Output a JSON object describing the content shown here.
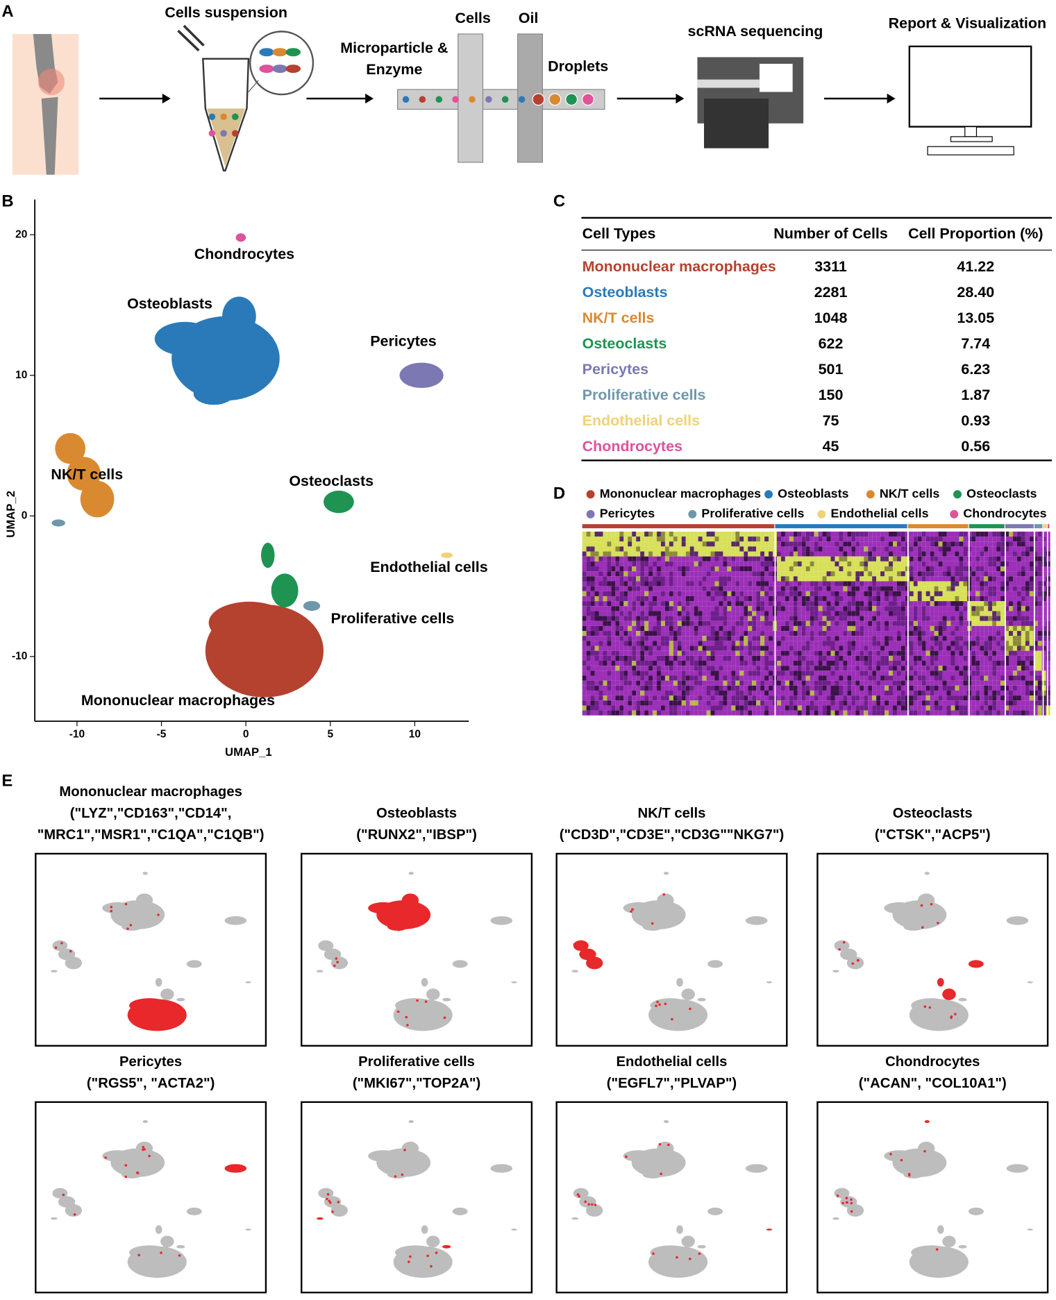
{
  "panel_labels": [
    "A",
    "B",
    "C",
    "D",
    "E"
  ],
  "workflow": {
    "cells_suspension": "Cells suspension",
    "microparticle": [
      "Microparticle &",
      "Enzyme"
    ],
    "cells": "Cells",
    "oil": "Oil",
    "droplets": "Droplets",
    "sequencing": "scRNA sequencing",
    "report": "Report & Visualization"
  },
  "umap": {
    "xlabel": "UMAP_1",
    "ylabel": "UMAP_2",
    "xlim": [
      -12.5,
      13.2
    ],
    "ylim": [
      -14.6,
      22.5
    ],
    "xticks": [
      -10,
      -5,
      0,
      5,
      10
    ],
    "yticks": [
      -10,
      0,
      10,
      20
    ]
  },
  "table": {
    "headers": [
      "Cell Types",
      "Number of Cells",
      "Cell Proportion (%)"
    ],
    "rows": [
      {
        "name": "Mononuclear macrophages",
        "color": "#b5412f",
        "count": 3311,
        "proportion": "41.22"
      },
      {
        "name": "Osteoblasts",
        "color": "#2a7ab9",
        "count": 2281,
        "proportion": "28.40"
      },
      {
        "name": "NK/T cells",
        "color": "#d98a30",
        "count": 1048,
        "proportion": "13.05"
      },
      {
        "name": "Osteoclasts",
        "color": "#1f9352",
        "count": 622,
        "proportion": "7.74"
      },
      {
        "name": "Pericytes",
        "color": "#7b78b3",
        "count": 501,
        "proportion": "6.23"
      },
      {
        "name": "Proliferative cells",
        "color": "#6f97aa",
        "count": 150,
        "proportion": "1.87"
      },
      {
        "name": "Endothelial cells",
        "color": "#f0d27a",
        "count": 75,
        "proportion": "0.93"
      },
      {
        "name": "Chondrocytes",
        "color": "#e0529a",
        "count": 45,
        "proportion": "0.56"
      }
    ]
  },
  "markers": [
    {
      "genes": [
        "(\"LYZ\",\"CD163\",\"CD14\",",
        "\"MRC1\",\"MSR1\",\"C1QA\",\"C1QB\")"
      ]
    },
    {
      "genes": [
        "(\"RUNX2\",\"IBSP\")"
      ]
    },
    {
      "genes": [
        "(\"CD3D\",\"CD3E\",\"CD3G\"\"NKG7\")"
      ]
    },
    {
      "genes": [
        "(\"CTSK\",\"ACP5\")"
      ]
    },
    {
      "genes": [
        "(\"RGS5\", \"ACTA2\")"
      ]
    },
    {
      "genes": [
        "(\"MKI67\",\"TOP2A\")"
      ]
    },
    {
      "genes": [
        "(\"EGFL7\",\"PLVAP\")"
      ]
    },
    {
      "genes": [
        "(\"ACAN\", \"COL10A1\")"
      ]
    }
  ]
}
